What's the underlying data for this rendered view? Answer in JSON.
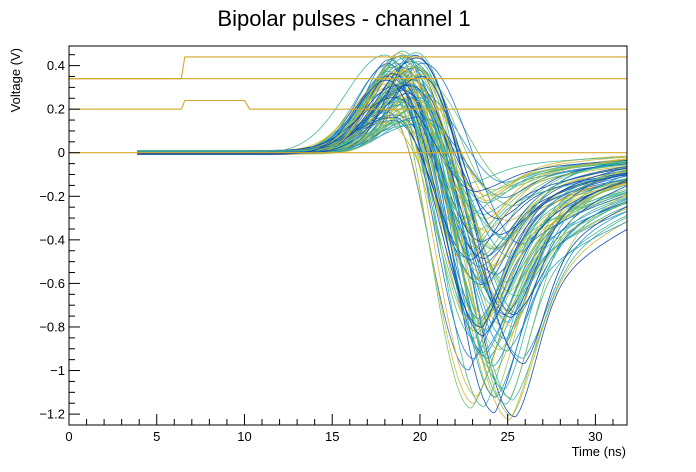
{
  "chart_data": {
    "type": "line",
    "title": "Bipolar pulses - channel 1",
    "xlabel": "Time (ns)",
    "ylabel": "Voltage (V)",
    "xlim": [
      0,
      31.8
    ],
    "ylim": [
      -1.25,
      0.49
    ],
    "grid": false,
    "legend": "none",
    "x_major_ticks": [
      0,
      5,
      10,
      15,
      20,
      25,
      30
    ],
    "x_tick_labels": [
      "0",
      "5",
      "10",
      "15",
      "20",
      "25",
      "30"
    ],
    "y_major_ticks": [
      0.4,
      0.2,
      0,
      -0.2,
      -0.4,
      -0.6,
      -0.8,
      -1,
      -1.2
    ],
    "y_tick_labels": [
      "0.4",
      "0.2",
      "0",
      "−0.2",
      "−0.4",
      "−0.6",
      "−0.8",
      "−1",
      "−1.2"
    ],
    "palette": [
      "#1f6fc8",
      "#1c97c9",
      "#24a9b8",
      "#3ab596",
      "#6bbf6e",
      "#a8bf48",
      "#d1b32a",
      "#0d48b5"
    ],
    "step_series_color": "#d4a82a",
    "step_series": [
      {
        "x": [
          0,
          6.4,
          6.6,
          31.8
        ],
        "y": [
          0.34,
          0.34,
          0.44,
          0.44
        ],
        "tail_y": 0.34
      },
      {
        "x": [
          0,
          6.4,
          6.6,
          10.0,
          10.3,
          31.8
        ],
        "y": [
          0.2,
          0.2,
          0.24,
          0.24,
          0.2,
          0.2
        ]
      },
      {
        "x": [
          0,
          15.5,
          31.8
        ],
        "y": [
          0.0,
          0.0,
          0.0
        ]
      }
    ],
    "pulse_family": {
      "count": 95,
      "x_start": 3.9,
      "x_end": 31.8,
      "peak_time_range": [
        17.9,
        20.2
      ],
      "peak_amplitude_range": [
        0.12,
        0.47
      ],
      "zero_crossing_range": [
        20.6,
        23.0
      ],
      "trough_time_range": [
        23.3,
        26.3
      ],
      "trough_amplitude_range": [
        -1.23,
        -0.12
      ],
      "end_value_range": [
        -0.75,
        -0.02
      ]
    }
  }
}
